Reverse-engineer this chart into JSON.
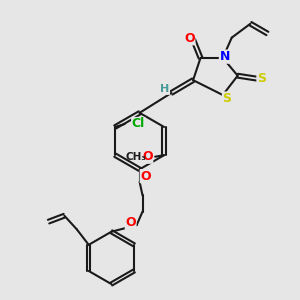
{
  "bg_color": "#e6e6e6",
  "bond_color": "#1a1a1a",
  "atom_colors": {
    "O": "#ff0000",
    "N": "#0000ff",
    "S": "#cccc00",
    "Cl": "#00aa00",
    "H": "#4a9a9a",
    "C": "#1a1a1a"
  },
  "fig_size": [
    3.0,
    3.0
  ],
  "dpi": 100
}
